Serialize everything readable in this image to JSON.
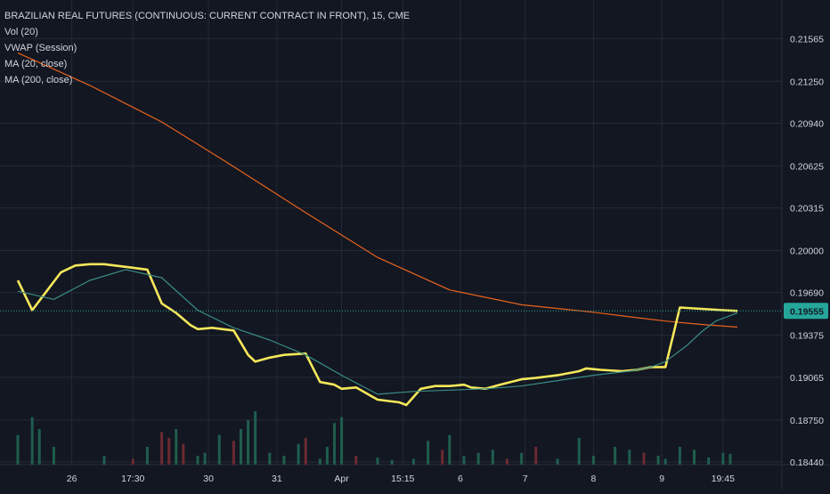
{
  "header": {
    "title": "BRAZILIAN REAL FUTURES (CONTINUOUS: CURRENT CONTRACT IN FRONT), 15, CME",
    "indicators": [
      "Vol (20)",
      "VWAP (Session)",
      "MA (20, close)",
      "MA (200, close)"
    ]
  },
  "colors": {
    "background": "#131722",
    "grid": "#242a36",
    "up_candle": "#26a69a",
    "down_candle": "#ef5350",
    "up_volume": "#1f5d4e",
    "down_volume": "#6b2a31",
    "vwap": "#f5e85a",
    "ma20": "#3a8d86",
    "ma200": "#e8631c",
    "last_price_line": "#26a69a",
    "text": "#d1d4dc"
  },
  "chart_data": {
    "type": "line",
    "title": "BRAZILIAN REAL FUTURES (CONTINUOUS: CURRENT CONTRACT IN FRONT), 15, CME",
    "x_ticks": [
      "26",
      "17:30",
      "30",
      "31",
      "Apr",
      "15:15",
      "6",
      "7",
      "8",
      "9",
      "19:45"
    ],
    "y_ticks": [
      0.21565,
      0.2125,
      0.2094,
      0.20625,
      0.20315,
      0.2,
      0.1969,
      0.19375,
      0.19065,
      0.1875,
      0.1844
    ],
    "y_tick_labels": [
      "0.21565",
      "0.21250",
      "0.20940",
      "0.20625",
      "0.20315",
      "0.20000",
      "0.19690",
      "0.19375",
      "0.19065",
      "0.18750",
      "0.18440"
    ],
    "ylim": [
      0.1842,
      0.2185
    ],
    "last_price": 0.19555,
    "last_price_label": "0.19555",
    "grid": true,
    "legend_position": "top-left",
    "series": [
      {
        "name": "MA (200, close)",
        "x": [
          0,
          10,
          20,
          30,
          40,
          50,
          60,
          70,
          80,
          86,
          90,
          95,
          100
        ],
        "y": [
          0.2146,
          0.2122,
          0.2095,
          0.2062,
          0.2028,
          0.1995,
          0.1971,
          0.196,
          0.19545,
          0.19505,
          0.1948,
          0.19455,
          0.19435
        ]
      },
      {
        "name": "VWAP (Session)",
        "x": [
          0,
          2,
          4,
          6,
          8,
          10,
          12,
          15,
          18,
          20,
          22,
          24,
          25,
          27,
          30,
          32,
          33,
          35,
          37,
          40,
          42,
          44,
          45,
          47,
          50,
          53,
          54,
          56,
          58,
          60,
          62,
          63,
          65,
          67,
          70,
          72,
          75,
          78,
          79,
          81,
          84,
          86,
          88,
          90,
          92,
          95,
          98,
          100
        ],
        "y": [
          0.1978,
          0.1956,
          0.197,
          0.1984,
          0.1989,
          0.199,
          0.199,
          0.1988,
          0.1986,
          0.1961,
          0.1954,
          0.1945,
          0.1942,
          0.1943,
          0.1941,
          0.1923,
          0.1918,
          0.1921,
          0.1923,
          0.1924,
          0.1903,
          0.1901,
          0.1898,
          0.1899,
          0.189,
          0.1888,
          0.1886,
          0.1898,
          0.19,
          0.19,
          0.1901,
          0.1899,
          0.1898,
          0.1901,
          0.1905,
          0.1906,
          0.1908,
          0.1911,
          0.1913,
          0.1912,
          0.1911,
          0.1912,
          0.1914,
          0.1914,
          0.1958,
          0.1957,
          0.1956,
          0.19555
        ]
      },
      {
        "name": "MA (20, close)",
        "x": [
          0,
          5,
          10,
          15,
          20,
          25,
          30,
          35,
          40,
          45,
          50,
          55,
          60,
          65,
          70,
          75,
          80,
          85,
          88,
          90,
          93,
          95,
          97,
          100
        ],
        "y": [
          0.197,
          0.1964,
          0.1978,
          0.1986,
          0.198,
          0.1956,
          0.1943,
          0.1934,
          0.1923,
          0.1908,
          0.1894,
          0.1896,
          0.1897,
          0.1898,
          0.19,
          0.1904,
          0.1908,
          0.1911,
          0.1914,
          0.1918,
          0.193,
          0.194,
          0.1948,
          0.1954
        ]
      }
    ],
    "volume": {
      "x": [
        0,
        2,
        3,
        5,
        12,
        16,
        18,
        20,
        21,
        22,
        23,
        25,
        26,
        28,
        30,
        31,
        32,
        33,
        35,
        37,
        39,
        40,
        42,
        43,
        44,
        45,
        47,
        50,
        52,
        55,
        57,
        59,
        60,
        62,
        64,
        66,
        68,
        70,
        72,
        75,
        78,
        80,
        83,
        85,
        87,
        89,
        90,
        92,
        94,
        96,
        98,
        99
      ],
      "values": [
        50,
        80,
        60,
        30,
        15,
        10,
        30,
        55,
        45,
        60,
        35,
        15,
        20,
        50,
        40,
        60,
        75,
        90,
        20,
        15,
        35,
        45,
        10,
        30,
        70,
        80,
        15,
        12,
        8,
        10,
        40,
        25,
        50,
        15,
        20,
        25,
        10,
        20,
        30,
        10,
        45,
        15,
        30,
        25,
        20,
        15,
        10,
        30,
        25,
        12,
        20,
        18
      ],
      "up": [
        true,
        true,
        true,
        true,
        true,
        false,
        true,
        false,
        false,
        true,
        false,
        true,
        true,
        true,
        false,
        true,
        true,
        true,
        true,
        true,
        true,
        false,
        true,
        true,
        true,
        true,
        false,
        true,
        true,
        true,
        true,
        false,
        true,
        true,
        true,
        true,
        false,
        true,
        false,
        true,
        true,
        true,
        true,
        true,
        false,
        true,
        true,
        true,
        true,
        true,
        true,
        true
      ]
    }
  }
}
